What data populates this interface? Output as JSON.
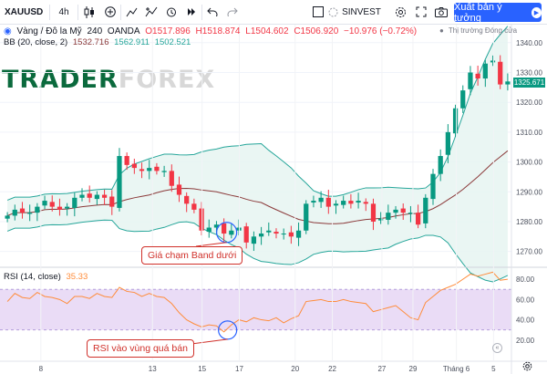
{
  "toolbar": {
    "symbol": "XAUUSD",
    "timeframe": "4h",
    "broker": "SINVEST",
    "publish_label": "Xuất bản ý tưởng"
  },
  "legend": {
    "title": "Vàng / Đô la Mỹ",
    "interval": "240",
    "source": "OANDA",
    "open": "O1517.896",
    "high": "H1518.874",
    "low": "L1504.602",
    "close": "C1506.920",
    "change": "−10.976 (−0.72%)",
    "market_status": "Thị trường Đóng cửa",
    "bb_label": "BB (20, close, 2)",
    "bb_basis": "1532.716",
    "bb_upper": "1562.911",
    "bb_lower": "1502.521",
    "rsi_label": "RSI (14, close)",
    "rsi_value": "35.33"
  },
  "watermark": {
    "part1": "TRADER",
    "part2": "FOREX"
  },
  "annotations": {
    "price": "Giá chạm Band dưới",
    "rsi": "RSI vào vùng quá bán"
  },
  "price_axis": {
    "ticks": [
      "1340.00",
      "1330.00",
      "1320.00",
      "1310.00",
      "1300.00",
      "1290.00",
      "1280.00",
      "1270.00"
    ],
    "last_price": "1325.671"
  },
  "rsi_axis": {
    "ticks": [
      "80.00",
      "60.00",
      "40.00",
      "20.00"
    ]
  },
  "time_axis": {
    "ticks": [
      "8",
      "13",
      "15",
      "17",
      "20",
      "22",
      "27",
      "29",
      "Tháng 6",
      "5"
    ]
  },
  "colors": {
    "up": "#089981",
    "down": "#f23645",
    "bb_basis": "#8b3a3a",
    "bb_band": "#26a69a",
    "rsi_line": "#ff8c3a",
    "rsi_zone": "#eadcf6",
    "accent": "#2962ff",
    "annotation": "#d0302a"
  },
  "chart_data": [
    {
      "type": "candlestick",
      "title": "Vàng / Đô la Mỹ",
      "ylim": [
        1265,
        1343
      ],
      "x_tick_labels": [
        "8",
        "13",
        "15",
        "17",
        "20",
        "22",
        "27",
        "29",
        "Tháng 6",
        "5"
      ],
      "indicators": [
        "BB (20, close, 2)"
      ],
      "close_path": [
        1282,
        1284,
        1283,
        1283,
        1285,
        1287,
        1285,
        1284,
        1285,
        1288,
        1289,
        1288,
        1289,
        1288,
        1285,
        1302,
        1299,
        1298,
        1297,
        1298,
        1297,
        1297,
        1292,
        1289,
        1286,
        1284,
        1277,
        1278,
        1279,
        1276,
        1277,
        1278,
        1273,
        1275,
        1276,
        1277,
        1276,
        1276,
        1275,
        1277,
        1286,
        1287,
        1288,
        1285,
        1286,
        1287,
        1286,
        1287,
        1286,
        1280,
        1281,
        1283,
        1284,
        1283,
        1283,
        1279,
        1288,
        1296,
        1302,
        1310,
        1318,
        1324,
        1330,
        1328,
        1333,
        1334,
        1326,
        1327
      ]
    },
    {
      "type": "line",
      "title": "RSI (14, close)",
      "ylim": [
        0,
        90
      ],
      "y_ticks": [
        80,
        60,
        40,
        20
      ],
      "overbought": 70,
      "oversold": 30,
      "values": [
        58,
        66,
        62,
        61,
        67,
        63,
        62,
        60,
        56,
        63,
        63,
        61,
        66,
        63,
        62,
        72,
        68,
        67,
        63,
        66,
        63,
        62,
        56,
        47,
        40,
        36,
        33,
        35,
        34,
        28,
        35,
        40,
        38,
        42,
        40,
        39,
        42,
        37,
        41,
        44,
        58,
        59,
        60,
        58,
        58,
        60,
        58,
        57,
        56,
        48,
        50,
        52,
        54,
        48,
        42,
        40,
        57,
        63,
        69,
        72,
        75,
        80,
        85,
        83,
        85,
        87,
        79,
        80
      ]
    }
  ]
}
